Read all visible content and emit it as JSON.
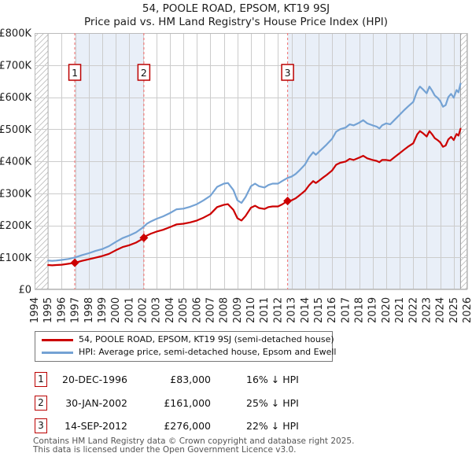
{
  "title": "54, POOLE ROAD, EPSOM, KT19 9SJ",
  "subtitle": "Price paid vs. HM Land Registry's House Price Index (HPI)",
  "chart_data": {
    "type": "line",
    "title": "54, POOLE ROAD, EPSOM, KT19 9SJ",
    "subtitle": "Price paid vs. HM Land Registry's House Price Index (HPI)",
    "unit": "GBP_thousands",
    "x_range": [
      1994,
      2026
    ],
    "y_range_gbp": [
      0,
      800000
    ],
    "grid": true,
    "legend_position": "bottom",
    "y_tick_labels": [
      "£0",
      "£100K",
      "£200K",
      "£300K",
      "£400K",
      "£500K",
      "£600K",
      "£700K",
      "£800K"
    ],
    "x_tick_labels": [
      "1994",
      "1995",
      "1996",
      "1997",
      "1998",
      "1999",
      "2000",
      "2001",
      "2002",
      "2003",
      "2004",
      "2005",
      "2006",
      "2007",
      "2008",
      "2009",
      "2010",
      "2011",
      "2012",
      "2013",
      "2014",
      "2015",
      "2016",
      "2017",
      "2018",
      "2019",
      "2020",
      "2021",
      "2022",
      "2023",
      "2024",
      "2025",
      "2026"
    ],
    "no_data_hatch_x": [
      [
        1994,
        1995.0
      ],
      [
        2025.5,
        2026
      ]
    ],
    "ownership_shading_x": [
      [
        1996.97,
        2002.08
      ],
      [
        2012.71,
        2025.5
      ]
    ],
    "colors": {
      "price_line": "#cc0000",
      "hpi_line": "#74a2d4",
      "shading": "#e9eff8",
      "grid": "#cccccc",
      "plot_border": "#bbbbbb",
      "data_edge_line": "#999999",
      "sale_dashed_line": "#f28080",
      "marker_box_border": "#bb0000",
      "hatch_stroke": "#bbbbbb",
      "axis_text": "#222222"
    },
    "series": [
      {
        "name": "54, POOLE ROAD, EPSOM, KT19 9SJ (semi-detached house)",
        "color": "#cc0000",
        "points": [
          [
            1995.0,
            76
          ],
          [
            1995.3,
            75
          ],
          [
            1995.6,
            76
          ],
          [
            1996.0,
            77
          ],
          [
            1996.5,
            80
          ],
          [
            1996.97,
            83
          ],
          [
            1997.5,
            89
          ],
          [
            1998.0,
            94
          ],
          [
            1998.5,
            99
          ],
          [
            1999.0,
            104
          ],
          [
            1999.5,
            111
          ],
          [
            2000.0,
            122
          ],
          [
            2000.5,
            132
          ],
          [
            2001.0,
            138
          ],
          [
            2001.5,
            146
          ],
          [
            2002.0,
            158
          ],
          [
            2002.08,
            161
          ],
          [
            2002.3,
            168
          ],
          [
            2002.6,
            174
          ],
          [
            2003.0,
            180
          ],
          [
            2003.5,
            186
          ],
          [
            2004.0,
            194
          ],
          [
            2004.5,
            203
          ],
          [
            2005.0,
            205
          ],
          [
            2005.5,
            209
          ],
          [
            2006.0,
            215
          ],
          [
            2006.5,
            224
          ],
          [
            2007.0,
            235
          ],
          [
            2007.5,
            257
          ],
          [
            2008.0,
            264
          ],
          [
            2008.3,
            266
          ],
          [
            2008.7,
            248
          ],
          [
            2009.0,
            222
          ],
          [
            2009.3,
            215
          ],
          [
            2009.6,
            229
          ],
          [
            2010.0,
            255
          ],
          [
            2010.3,
            261
          ],
          [
            2010.6,
            254
          ],
          [
            2011.0,
            251
          ],
          [
            2011.3,
            257
          ],
          [
            2011.6,
            259
          ],
          [
            2012.0,
            259
          ],
          [
            2012.3,
            265
          ],
          [
            2012.71,
            276
          ],
          [
            2013.0,
            278
          ],
          [
            2013.3,
            284
          ],
          [
            2013.6,
            294
          ],
          [
            2014.0,
            308
          ],
          [
            2014.3,
            325
          ],
          [
            2014.6,
            338
          ],
          [
            2014.8,
            332
          ],
          [
            2015.0,
            338
          ],
          [
            2015.3,
            348
          ],
          [
            2015.6,
            357
          ],
          [
            2016.0,
            371
          ],
          [
            2016.3,
            389
          ],
          [
            2016.6,
            395
          ],
          [
            2017.0,
            399
          ],
          [
            2017.3,
            407
          ],
          [
            2017.6,
            404
          ],
          [
            2018.0,
            411
          ],
          [
            2018.3,
            417
          ],
          [
            2018.6,
            409
          ],
          [
            2019.0,
            404
          ],
          [
            2019.3,
            401
          ],
          [
            2019.5,
            397
          ],
          [
            2019.7,
            404
          ],
          [
            2020.0,
            404
          ],
          [
            2020.3,
            402
          ],
          [
            2020.6,
            412
          ],
          [
            2021.0,
            425
          ],
          [
            2021.3,
            435
          ],
          [
            2021.6,
            445
          ],
          [
            2022.0,
            456
          ],
          [
            2022.3,
            484
          ],
          [
            2022.5,
            494
          ],
          [
            2022.7,
            488
          ],
          [
            2023.0,
            477
          ],
          [
            2023.2,
            494
          ],
          [
            2023.4,
            484
          ],
          [
            2023.6,
            472
          ],
          [
            2023.8,
            466
          ],
          [
            2024.0,
            459
          ],
          [
            2024.2,
            445
          ],
          [
            2024.4,
            449
          ],
          [
            2024.6,
            468
          ],
          [
            2024.8,
            476
          ],
          [
            2025.0,
            466
          ],
          [
            2025.2,
            485
          ],
          [
            2025.35,
            480
          ],
          [
            2025.5,
            501
          ]
        ]
      },
      {
        "name": "HPI: Average price, semi-detached house, Epsom and Ewell",
        "color": "#74a2d4",
        "points": [
          [
            1995.0,
            90
          ],
          [
            1995.3,
            89
          ],
          [
            1995.6,
            90
          ],
          [
            1996.0,
            92
          ],
          [
            1996.5,
            95
          ],
          [
            1997.0,
            100
          ],
          [
            1997.5,
            107
          ],
          [
            1998.0,
            113
          ],
          [
            1998.5,
            120
          ],
          [
            1999.0,
            126
          ],
          [
            1999.5,
            135
          ],
          [
            2000.0,
            148
          ],
          [
            2000.5,
            160
          ],
          [
            2001.0,
            168
          ],
          [
            2001.5,
            178
          ],
          [
            2002.0,
            193
          ],
          [
            2002.3,
            205
          ],
          [
            2002.6,
            212
          ],
          [
            2003.0,
            220
          ],
          [
            2003.5,
            228
          ],
          [
            2004.0,
            238
          ],
          [
            2004.5,
            250
          ],
          [
            2005.0,
            252
          ],
          [
            2005.5,
            258
          ],
          [
            2006.0,
            266
          ],
          [
            2006.5,
            278
          ],
          [
            2007.0,
            292
          ],
          [
            2007.5,
            320
          ],
          [
            2008.0,
            330
          ],
          [
            2008.3,
            332
          ],
          [
            2008.7,
            310
          ],
          [
            2009.0,
            278
          ],
          [
            2009.3,
            270
          ],
          [
            2009.6,
            288
          ],
          [
            2010.0,
            322
          ],
          [
            2010.3,
            330
          ],
          [
            2010.6,
            322
          ],
          [
            2011.0,
            318
          ],
          [
            2011.3,
            326
          ],
          [
            2011.6,
            330
          ],
          [
            2012.0,
            330
          ],
          [
            2012.3,
            338
          ],
          [
            2012.71,
            348
          ],
          [
            2013.0,
            352
          ],
          [
            2013.3,
            360
          ],
          [
            2013.6,
            372
          ],
          [
            2014.0,
            390
          ],
          [
            2014.3,
            412
          ],
          [
            2014.6,
            428
          ],
          [
            2014.8,
            420
          ],
          [
            2015.0,
            428
          ],
          [
            2015.3,
            440
          ],
          [
            2015.6,
            452
          ],
          [
            2016.0,
            470
          ],
          [
            2016.3,
            492
          ],
          [
            2016.6,
            500
          ],
          [
            2017.0,
            505
          ],
          [
            2017.3,
            515
          ],
          [
            2017.6,
            512
          ],
          [
            2018.0,
            520
          ],
          [
            2018.3,
            528
          ],
          [
            2018.6,
            518
          ],
          [
            2019.0,
            512
          ],
          [
            2019.3,
            508
          ],
          [
            2019.5,
            502
          ],
          [
            2019.7,
            512
          ],
          [
            2020.0,
            518
          ],
          [
            2020.3,
            515
          ],
          [
            2020.6,
            528
          ],
          [
            2021.0,
            545
          ],
          [
            2021.3,
            558
          ],
          [
            2021.6,
            570
          ],
          [
            2022.0,
            585
          ],
          [
            2022.3,
            620
          ],
          [
            2022.5,
            633
          ],
          [
            2022.7,
            625
          ],
          [
            2023.0,
            612
          ],
          [
            2023.2,
            633
          ],
          [
            2023.4,
            620
          ],
          [
            2023.6,
            605
          ],
          [
            2023.8,
            598
          ],
          [
            2024.0,
            588
          ],
          [
            2024.2,
            570
          ],
          [
            2024.4,
            575
          ],
          [
            2024.6,
            600
          ],
          [
            2024.8,
            610
          ],
          [
            2025.0,
            598
          ],
          [
            2025.2,
            622
          ],
          [
            2025.35,
            615
          ],
          [
            2025.5,
            642
          ]
        ]
      }
    ],
    "sale_markers": [
      {
        "label": "1",
        "x": 1996.97,
        "value_k": 83
      },
      {
        "label": "2",
        "x": 2002.08,
        "value_k": 161
      },
      {
        "label": "3",
        "x": 2012.71,
        "value_k": 276
      }
    ]
  },
  "legend": {
    "items": [
      {
        "label": "54, POOLE ROAD, EPSOM, KT19 9SJ (semi-detached house)",
        "series": "price_line"
      },
      {
        "label": "HPI: Average price, semi-detached house, Epsom and Ewell",
        "series": "hpi_line"
      }
    ]
  },
  "transactions": [
    {
      "num": "1",
      "date": "20-DEC-1996",
      "price": "£83,000",
      "vs_hpi": "16% ↓ HPI"
    },
    {
      "num": "2",
      "date": "30-JAN-2002",
      "price": "£161,000",
      "vs_hpi": "25% ↓ HPI"
    },
    {
      "num": "3",
      "date": "14-SEP-2012",
      "price": "£276,000",
      "vs_hpi": "22% ↓ HPI"
    }
  ],
  "footer": {
    "line1": "Contains HM Land Registry data © Crown copyright and database right 2025.",
    "line2": "This data is licensed under the Open Government Licence v3.0."
  }
}
